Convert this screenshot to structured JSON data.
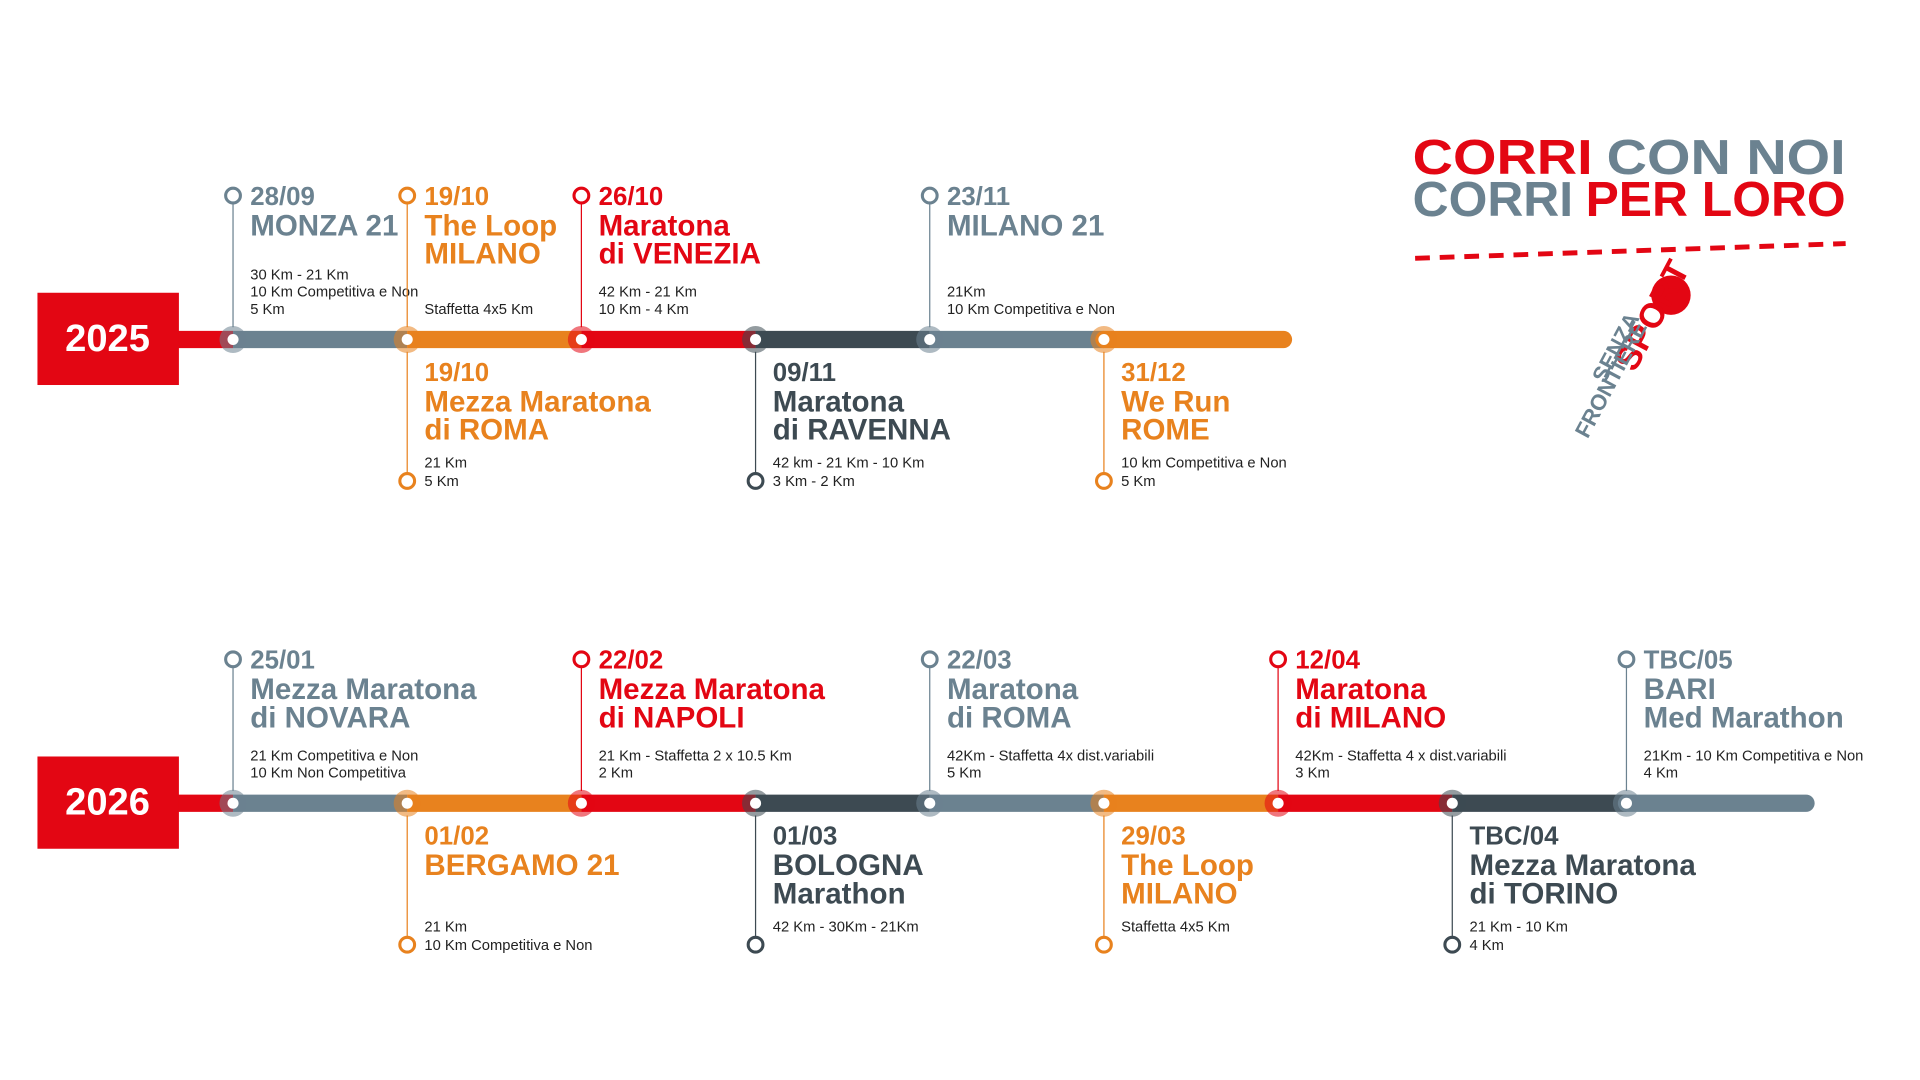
{
  "header": {
    "lines": [
      [
        {
          "text": "CORRI",
          "color": "#e30613"
        },
        {
          "text": "CON NOI",
          "color": "#6b8290"
        }
      ],
      [
        {
          "text": "CORRI",
          "color": "#6b8290"
        },
        {
          "text": "PER LORO",
          "color": "#e30613"
        }
      ]
    ]
  },
  "logo": {
    "sport": "SPORT",
    "senza": "SENZA",
    "frontiere": "FRONTIERE"
  },
  "timelines": [
    {
      "year": "2025",
      "stops": [
        {
          "color": "#6b8290",
          "events": [
            {
              "position": "above",
              "date": "28/09",
              "name": [
                "MONZA 21"
              ],
              "details": [
                "30 Km - 21 Km",
                "10 Km Competitiva e Non",
                "5 Km"
              ]
            }
          ]
        },
        {
          "color": "#e8821e",
          "events": [
            {
              "position": "above",
              "date": "19/10",
              "name": [
                "The Loop",
                "MILANO"
              ],
              "details": [
                "Staffetta 4x5 Km"
              ]
            },
            {
              "position": "below",
              "date": "19/10",
              "name": [
                "Mezza Maratona",
                "di ROMA"
              ],
              "details": [
                "21 Km",
                "5 Km"
              ]
            }
          ]
        },
        {
          "color": "#e30613",
          "events": [
            {
              "position": "above",
              "date": "26/10",
              "name": [
                "Maratona",
                "di VENEZIA"
              ],
              "details": [
                "42 Km - 21 Km",
                "10 Km - 4 Km"
              ]
            }
          ]
        },
        {
          "color": "#3d4a52",
          "events": [
            {
              "position": "below",
              "date": "09/11",
              "name": [
                "Maratona",
                "di RAVENNA"
              ],
              "details": [
                "42 km - 21 Km - 10 Km",
                "3 Km - 2 Km"
              ]
            }
          ]
        },
        {
          "color": "#6b8290",
          "events": [
            {
              "position": "above",
              "date": "23/11",
              "name": [
                "MILANO 21"
              ],
              "details": [
                "21Km",
                "10 Km Competitiva e Non"
              ]
            }
          ]
        },
        {
          "color": "#e8821e",
          "events": [
            {
              "position": "below",
              "date": "31/12",
              "name": [
                "We Run",
                "ROME"
              ],
              "details": [
                "10 km Competitiva e Non",
                "5 Km"
              ]
            }
          ]
        }
      ]
    },
    {
      "year": "2026",
      "stops": [
        {
          "color": "#6b8290",
          "events": [
            {
              "position": "above",
              "date": "25/01",
              "name": [
                "Mezza Maratona",
                "di NOVARA"
              ],
              "details": [
                "21 Km Competitiva e Non",
                "10 Km Non Competitiva"
              ]
            }
          ]
        },
        {
          "color": "#e8821e",
          "events": [
            {
              "position": "below",
              "date": "01/02",
              "name": [
                "BERGAMO 21"
              ],
              "details": [
                "21 Km",
                "10 Km Competitiva e Non"
              ]
            }
          ]
        },
        {
          "color": "#e30613",
          "events": [
            {
              "position": "above",
              "date": "22/02",
              "name": [
                "Mezza Maratona",
                "di NAPOLI"
              ],
              "details": [
                "21 Km - Staffetta 2 x 10.5 Km",
                "2 Km"
              ]
            }
          ]
        },
        {
          "color": "#3d4a52",
          "events": [
            {
              "position": "below",
              "date": "01/03",
              "name": [
                "BOLOGNA",
                "Marathon"
              ],
              "details": [
                "42 Km - 30Km - 21Km"
              ]
            }
          ]
        },
        {
          "color": "#6b8290",
          "events": [
            {
              "position": "above",
              "date": "22/03",
              "name": [
                "Maratona",
                "di ROMA"
              ],
              "details": [
                "42Km - Staffetta 4x dist.variabili",
                "5 Km"
              ]
            }
          ]
        },
        {
          "color": "#e8821e",
          "events": [
            {
              "position": "below",
              "date": "29/03",
              "name": [
                "The Loop",
                "MILANO"
              ],
              "details": [
                "Staffetta 4x5 Km"
              ]
            }
          ]
        },
        {
          "color": "#e30613",
          "events": [
            {
              "position": "above",
              "date": "12/04",
              "name": [
                "Maratona",
                "di MILANO"
              ],
              "details": [
                "42Km - Staffetta 4 x dist.variabili",
                "3 Km"
              ]
            }
          ]
        },
        {
          "color": "#3d4a52",
          "events": [
            {
              "position": "below",
              "date": "TBC/04",
              "name": [
                "Mezza Maratona",
                "di TORINO"
              ],
              "details": [
                "21 Km - 10 Km",
                "4 Km"
              ]
            }
          ]
        },
        {
          "color": "#6b8290",
          "events": [
            {
              "position": "above",
              "date": "TBC/05",
              "name": [
                "BARI",
                "Med Marathon"
              ],
              "details": [
                "21Km - 10 Km Competitiva e Non",
                "4 Km"
              ]
            }
          ]
        }
      ]
    }
  ]
}
